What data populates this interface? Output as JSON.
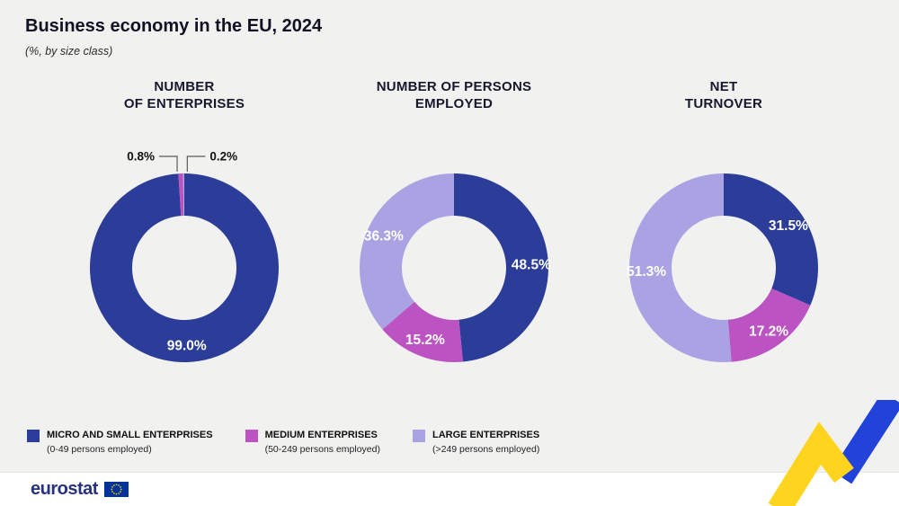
{
  "header": {
    "title": "Business economy in the EU, 2024",
    "subtitle": "(%, by size class)"
  },
  "palette": {
    "micro_small": "#2b3d98",
    "medium": "#bc53c3",
    "large": "#aaa3e3",
    "background": "#f1f1f0",
    "footer_bg": "#ffffff",
    "ribbon_yellow": "#ffd41f",
    "ribbon_blue": "#2143d9",
    "logo_blue": "#26327e",
    "flag_blue": "#003399",
    "flag_yellow": "#ffcc00"
  },
  "chart_data": [
    {
      "type": "pie",
      "subtype": "donut",
      "title": "NUMBER OF ENTERPRISES",
      "title_lines": [
        "NUMBER",
        "OF ENTERPRISES"
      ],
      "unit": "%",
      "slices": [
        {
          "label": "Micro and small enterprises (0-49 persons employed)",
          "value": 99.0,
          "display": "99.0%",
          "color": "#2b3d98"
        },
        {
          "label": "Medium enterprises (50-249 persons employed)",
          "value": 0.8,
          "display": "0.8%",
          "color": "#bc53c3"
        },
        {
          "label": "Large enterprises (>249 persons employed)",
          "value": 0.2,
          "display": "0.2%",
          "color": "#aaa3e3"
        }
      ]
    },
    {
      "type": "pie",
      "subtype": "donut",
      "title": "NUMBER OF PERSONS EMPLOYED",
      "title_lines": [
        "NUMBER OF PERSONS",
        "EMPLOYED"
      ],
      "unit": "%",
      "slices": [
        {
          "label": "Micro and small enterprises (0-49 persons employed)",
          "value": 48.5,
          "display": "48.5%",
          "color": "#2b3d98"
        },
        {
          "label": "Medium enterprises (50-249 persons employed)",
          "value": 15.2,
          "display": "15.2%",
          "color": "#bc53c3"
        },
        {
          "label": "Large enterprises (>249 persons employed)",
          "value": 36.3,
          "display": "36.3%",
          "color": "#aaa3e3"
        }
      ]
    },
    {
      "type": "pie",
      "subtype": "donut",
      "title": "NET TURNOVER",
      "title_lines": [
        "NET",
        "TURNOVER"
      ],
      "unit": "%",
      "slices": [
        {
          "label": "Micro and small enterprises (0-49 persons employed)",
          "value": 31.5,
          "display": "31.5%",
          "color": "#2b3d98"
        },
        {
          "label": "Medium enterprises (50-249 persons employed)",
          "value": 17.2,
          "display": "17.2%",
          "color": "#bc53c3"
        },
        {
          "label": "Large enterprises (>249 persons employed)",
          "value": 51.3,
          "display": "51.3%",
          "color": "#aaa3e3"
        }
      ]
    }
  ],
  "legend": {
    "position": "bottom",
    "items": [
      {
        "label": "MICRO AND SMALL ENTERPRISES",
        "sublabel": "(0-49 persons employed)",
        "color": "#2b3d98"
      },
      {
        "label": "MEDIUM ENTERPRISES",
        "sublabel": "(50-249 persons employed)",
        "color": "#bc53c3"
      },
      {
        "label": "LARGE ENTERPRISES",
        "sublabel": "(>249 persons employed)",
        "color": "#aaa3e3"
      }
    ]
  },
  "footer": {
    "logo_text": "eurostat",
    "flag_icon": "eu-flag-icon",
    "decoration_icon": "ribbon-decoration"
  }
}
